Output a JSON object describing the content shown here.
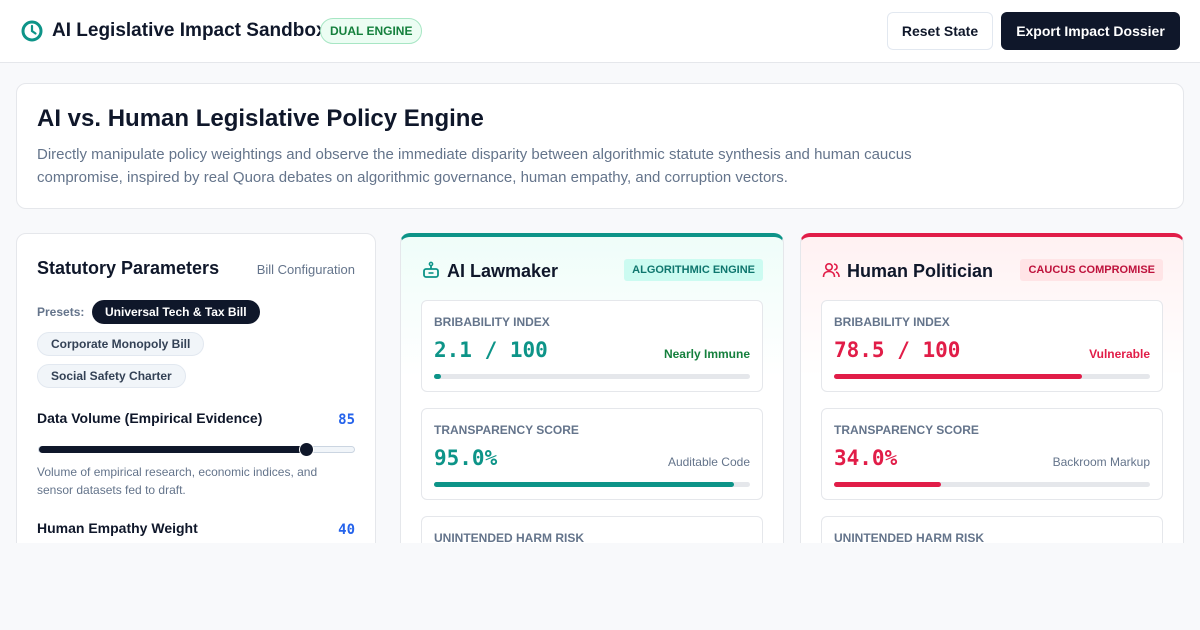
{
  "header": {
    "title": "AI Legislative Impact Sandbox",
    "badge": "DUAL ENGINE",
    "reset_label": "Reset State",
    "export_label": "Export Impact Dossier"
  },
  "intro": {
    "title": "AI vs. Human Legislative Policy Engine",
    "description": "Directly manipulate policy weightings and observe the immediate disparity between algorithmic statute synthesis and human caucus compromise, inspired by real Quora debates on algorithmic governance, human empathy, and corruption vectors."
  },
  "params": {
    "title": "Statutory Parameters",
    "subtitle": "Bill Configuration",
    "presets_label": "Presets:",
    "presets": [
      {
        "label": "Universal Tech & Tax Bill",
        "active": true
      },
      {
        "label": "Corporate Monopoly Bill",
        "active": false
      },
      {
        "label": "Social Safety Charter",
        "active": false
      }
    ],
    "sliders": [
      {
        "label": "Data Volume (Empirical Evidence)",
        "value": "85",
        "fraction": 0.85,
        "description": "Volume of empirical research, economic indices, and sensor datasets fed to draft."
      },
      {
        "label": "Human Empathy Weight",
        "value": "40",
        "fraction": 0.4,
        "description": ""
      }
    ]
  },
  "ai_engine": {
    "title": "AI Lawmaker",
    "badge": "ALGORITHMIC ENGINE",
    "icon": "robot-icon",
    "metrics": [
      {
        "label": "Bribability Index",
        "value": "2.1 / 100",
        "status": "Nearly Immune",
        "fraction": 0.021
      },
      {
        "label": "Transparency Score",
        "value": "95.0%",
        "status": "Auditable Code",
        "fraction": 0.95
      },
      {
        "label": "Unintended Harm Risk",
        "value": "",
        "status": "",
        "fraction": 0
      }
    ]
  },
  "human_engine": {
    "title": "Human Politician",
    "badge": "CAUCUS COMPROMISE",
    "icon": "users-icon",
    "metrics": [
      {
        "label": "Bribability Index",
        "value": "78.5 / 100",
        "status": "Vulnerable",
        "fraction": 0.785
      },
      {
        "label": "Transparency Score",
        "value": "34.0%",
        "status": "Backroom Markup",
        "fraction": 0.34
      },
      {
        "label": "Unintended Harm Risk",
        "value": "",
        "status": "",
        "fraction": 0
      }
    ]
  },
  "colors": {
    "ai_accent": "#0d9488",
    "human_accent": "#e11d48",
    "primary": "#0f172a",
    "slider_value": "#2563eb"
  }
}
